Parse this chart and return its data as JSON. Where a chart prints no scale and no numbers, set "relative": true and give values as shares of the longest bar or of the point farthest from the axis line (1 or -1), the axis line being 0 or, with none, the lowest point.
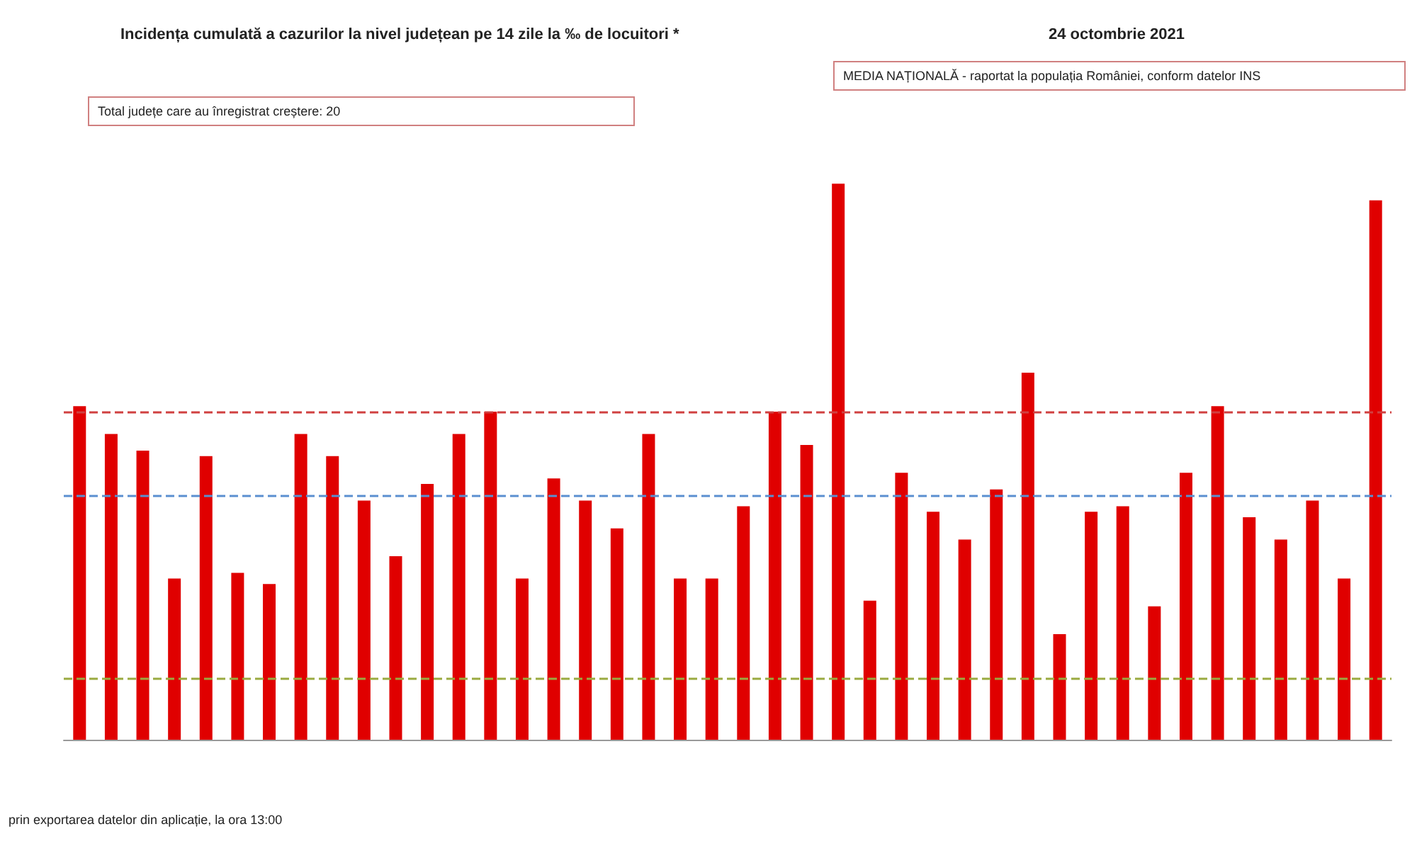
{
  "chart_data": {
    "type": "bar",
    "title": "Incidența cumulată a cazurilor la nivel județean pe 14 zile la ‰ de locuitori *",
    "subtitle": "24 octombrie 2021",
    "categories": [
      null,
      null,
      null,
      null,
      null,
      null,
      null,
      null,
      null,
      null,
      null,
      null,
      null,
      null,
      null,
      null,
      null,
      null,
      null,
      null,
      null,
      null,
      null,
      null,
      null,
      null,
      null,
      null,
      null,
      null,
      null,
      null,
      null,
      null,
      null,
      null,
      null,
      null,
      null,
      null,
      null,
      null
    ],
    "relative": true,
    "values": [
      0.6,
      0.55,
      0.52,
      0.29,
      0.51,
      0.3,
      0.28,
      0.55,
      0.51,
      0.43,
      0.33,
      0.46,
      0.55,
      0.59,
      0.29,
      0.47,
      0.43,
      0.38,
      0.55,
      0.29,
      0.29,
      0.42,
      0.59,
      0.53,
      1,
      0.25,
      0.48,
      0.41,
      0.36,
      0.45,
      0.66,
      0.19,
      0.41,
      0.42,
      0.24,
      0.48,
      0.6,
      0.4,
      0.36,
      0.43,
      0.29,
      0.97
    ],
    "color": "#e00000",
    "ref_lines": [
      {
        "axis": "y",
        "value": 0.59,
        "color": "#d04040",
        "line_style": "dashed"
      },
      {
        "axis": "y",
        "value": 0.44,
        "color": "#5a8fd0",
        "line_style": "dashed"
      },
      {
        "axis": "y",
        "value": 0.11,
        "color": "#9aaa40",
        "line_style": "dashed"
      }
    ],
    "annotations": [
      "Total județe care au înregistrat creștere: 20",
      "MEDIA NAȚIONALĂ - raportat la populația României, conform datelor INS",
      "prin exportarea datelor din aplicație, la ora 13:00"
    ],
    "grid": false
  }
}
